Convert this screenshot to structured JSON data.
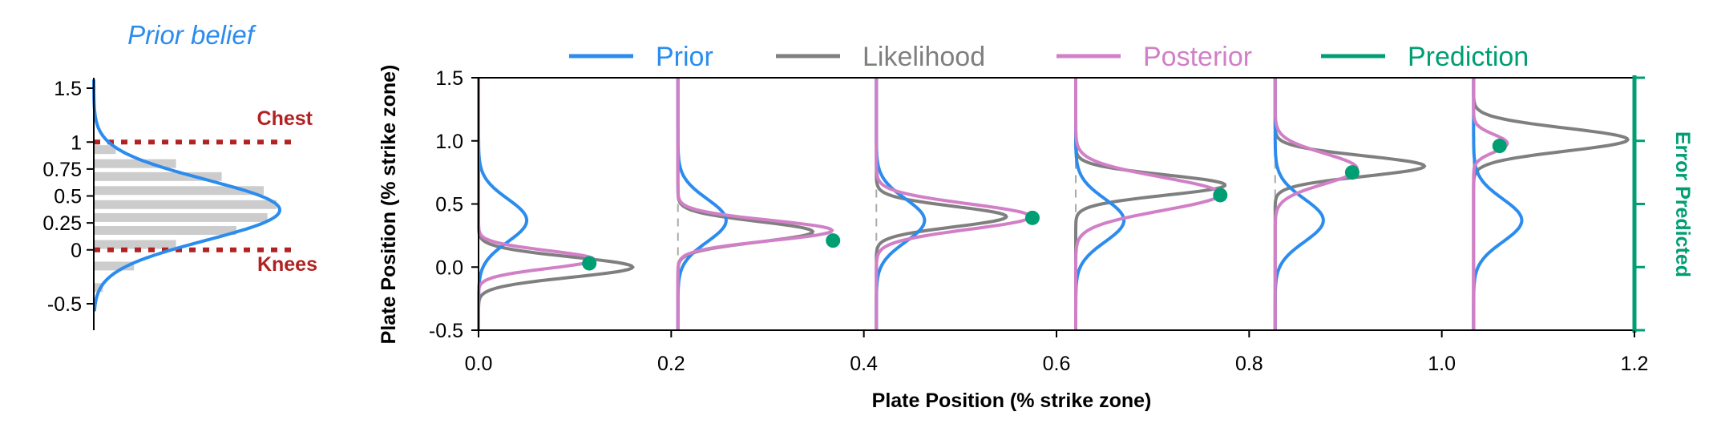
{
  "colors": {
    "prior": "#2b8cee",
    "likelihood": "#7f7f7f",
    "posterior": "#d17fc7",
    "prediction": "#009e73",
    "annot": "#b22222",
    "hist": "#cccccc"
  },
  "chart_data": [
    {
      "type": "histogram",
      "title": "Prior belief",
      "ylim": [
        -0.7,
        1.6
      ],
      "yticks": [
        "-0.5",
        "0",
        "0.25",
        "0.5",
        "0.75",
        "1",
        "1.5"
      ],
      "ytick_values": [
        -0.5,
        0,
        0.25,
        0.5,
        0.75,
        1,
        1.5
      ],
      "hist_bins": [
        {
          "y": -0.35,
          "value": 0.05
        },
        {
          "y": -0.15,
          "value": 0.22
        },
        {
          "y": 0.05,
          "value": 0.45
        },
        {
          "y": 0.18,
          "value": 0.78
        },
        {
          "y": 0.3,
          "value": 0.95
        },
        {
          "y": 0.42,
          "value": 1.0
        },
        {
          "y": 0.55,
          "value": 0.93
        },
        {
          "y": 0.68,
          "value": 0.7
        },
        {
          "y": 0.8,
          "value": 0.45
        },
        {
          "y": 0.93,
          "value": 0.12
        }
      ],
      "prior_curve": {
        "mean": 0.37,
        "sd": 0.28
      },
      "annotations": [
        {
          "text": "Chest",
          "y": 1.0
        },
        {
          "text": "Knees",
          "y": 0.0
        }
      ]
    },
    {
      "type": "line",
      "xlabel": "Plate Position (% strike zone)",
      "ylabel": "Plate Position (% strike zone)",
      "right_label": "Error Predicted",
      "xlim": [
        0,
        1.2
      ],
      "ylim": [
        -0.5,
        1.5
      ],
      "xticks": [
        "0.0",
        "0.2",
        "0.4",
        "0.6",
        "0.8",
        "1.0",
        "1.2"
      ],
      "xtick_values": [
        0,
        0.2,
        0.4,
        0.6,
        0.8,
        1.0,
        1.2
      ],
      "yticks": [
        "-0.5",
        "0.0",
        "0.5",
        "1.0",
        "1.5"
      ],
      "ytick_values": [
        -0.5,
        0,
        0.5,
        1.0,
        1.5
      ],
      "legend": [
        "Prior",
        "Likelihood",
        "Posterior",
        "Prediction"
      ],
      "legend_position": "top",
      "prior": {
        "mean": 0.37,
        "sd": 0.17,
        "peak_width": 0.05
      },
      "panels": [
        {
          "x0": 0.0,
          "lik_mean": 0.0,
          "lik_sd": 0.08,
          "lik_width": 0.16,
          "post_mean": 0.06,
          "post_sd": 0.07,
          "post_width": 0.12,
          "pred": [
            0.115,
            0.03
          ]
        },
        {
          "x0": 0.207,
          "lik_mean": 0.28,
          "lik_sd": 0.08,
          "lik_width": 0.14,
          "post_mean": 0.29,
          "post_sd": 0.08,
          "post_width": 0.16,
          "pred": [
            0.368,
            0.21
          ]
        },
        {
          "x0": 0.413,
          "lik_mean": 0.4,
          "lik_sd": 0.08,
          "lik_width": 0.135,
          "post_mean": 0.4,
          "post_sd": 0.1,
          "post_width": 0.16,
          "pred": [
            0.575,
            0.39
          ]
        },
        {
          "x0": 0.62,
          "lik_mean": 0.65,
          "lik_sd": 0.08,
          "lik_width": 0.155,
          "post_mean": 0.58,
          "post_sd": 0.13,
          "post_width": 0.15,
          "pred": [
            0.77,
            0.57
          ]
        },
        {
          "x0": 0.827,
          "lik_mean": 0.8,
          "lik_sd": 0.08,
          "lik_width": 0.155,
          "post_mean": 0.78,
          "post_sd": 0.12,
          "post_width": 0.085,
          "pred": [
            0.907,
            0.75
          ]
        },
        {
          "x0": 1.033,
          "lik_mean": 1.01,
          "lik_sd": 0.09,
          "lik_width": 0.16,
          "post_mean": 0.98,
          "post_sd": 0.07,
          "post_width": 0.035,
          "pred": [
            1.06,
            0.96
          ]
        }
      ]
    }
  ]
}
